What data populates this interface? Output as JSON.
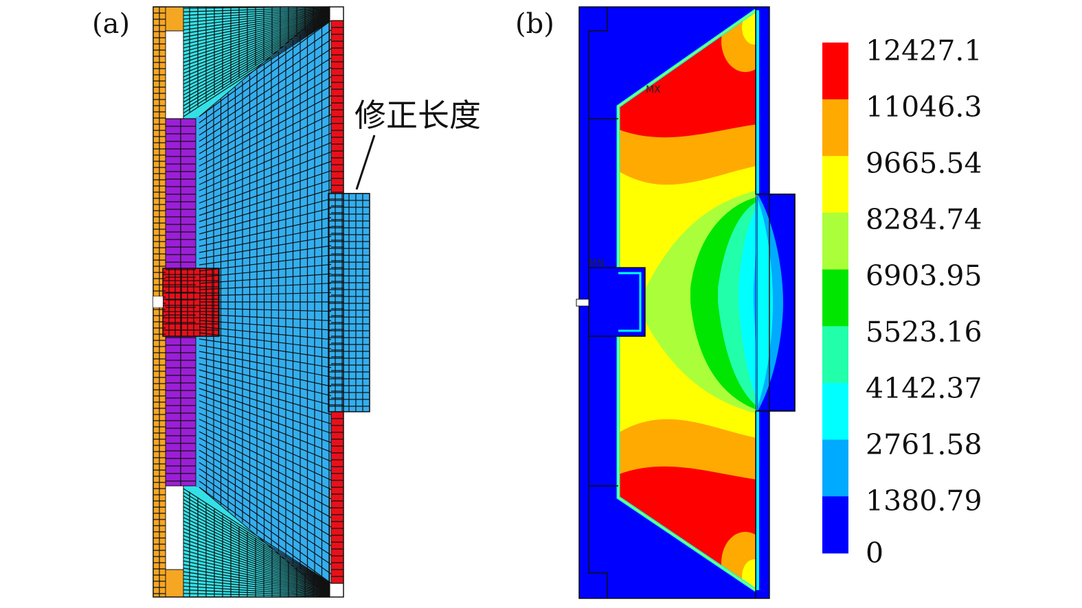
{
  "panel_a": {
    "label": "(a)",
    "annotation": "修正长度",
    "colors": {
      "outer_strip": "#F5A623",
      "inner_strip": "#33E0E6",
      "body": "#33AEEF",
      "purple": "#9B1FD6",
      "red": "#E8101A",
      "mesh_line": "#111111"
    }
  },
  "panel_b": {
    "label": "(b)",
    "markers": {
      "max": "MX",
      "min": "MN"
    }
  },
  "legend": {
    "values": [
      "12427.1",
      "11046.3",
      "9665.54",
      "8284.74",
      "6903.95",
      "5523.16",
      "4142.37",
      "2761.58",
      "1380.79",
      "0"
    ],
    "colors": [
      "#FF0000",
      "#FFAA00",
      "#FFFF00",
      "#AAFF3A",
      "#00E600",
      "#22FFAA",
      "#00FFFF",
      "#00AAFF",
      "#0000FF"
    ]
  }
}
